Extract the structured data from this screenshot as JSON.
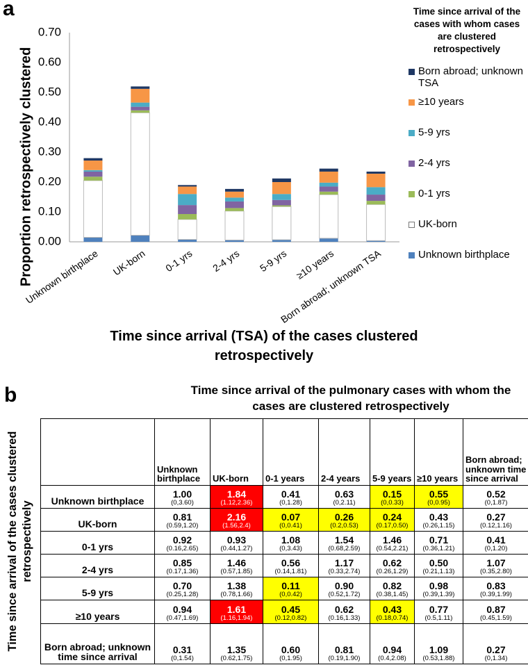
{
  "chart_data": {
    "type": "stacked_bar",
    "panel_label": "a",
    "y_label": "Proportion retrospectively clustered",
    "x_label": "Time since arrival (TSA) of the cases clustered retrospectively",
    "legend_title": "Time since arrival of the cases with whom cases are clustered retrospectively",
    "legend_position": "right",
    "categories": [
      "Unknown birthplace",
      "UK-born",
      "0-1 yrs",
      "2-4 yrs",
      "5-9 yrs",
      "≥10 years",
      "Born abroad; unknown TSA"
    ],
    "series": [
      {
        "name": "Unknown birthplace",
        "color": "#4f81bd",
        "values": [
          0.015,
          0.022,
          0.008,
          0.006,
          0.007,
          0.012,
          0.004
        ]
      },
      {
        "name": "UK-born",
        "color": "#ffffff",
        "values": [
          0.19,
          0.41,
          0.067,
          0.097,
          0.111,
          0.146,
          0.121
        ]
      },
      {
        "name": "0-1 yrs",
        "color": "#9bbb59",
        "values": [
          0.013,
          0.008,
          0.018,
          0.01,
          0.004,
          0.01,
          0.012
        ]
      },
      {
        "name": "2-4 yrs",
        "color": "#8064a2",
        "values": [
          0.017,
          0.012,
          0.03,
          0.022,
          0.018,
          0.017,
          0.021
        ]
      },
      {
        "name": "5-9 yrs",
        "color": "#4bacc6",
        "values": [
          0.005,
          0.014,
          0.037,
          0.013,
          0.02,
          0.013,
          0.025
        ]
      },
      {
        "name": "≥10 years",
        "color": "#f79646",
        "values": [
          0.032,
          0.046,
          0.025,
          0.02,
          0.04,
          0.037,
          0.045
        ]
      },
      {
        "name": "Born abroad; unknown TSA",
        "color": "#1f3864",
        "values": [
          0.008,
          0.008,
          0.005,
          0.009,
          0.012,
          0.01,
          0.007
        ]
      }
    ],
    "ylim": [
      0,
      0.7
    ],
    "yticks": [
      {
        "value": 0,
        "label": "0.00"
      },
      {
        "value": 0.1,
        "label": "0.10"
      },
      {
        "value": 0.2,
        "label": "0.20"
      },
      {
        "value": 0.3,
        "label": "0.30"
      },
      {
        "value": 0.4,
        "label": "0.40"
      },
      {
        "value": 0.5,
        "label": "0.50"
      },
      {
        "value": 0.6,
        "label": "0.60"
      },
      {
        "value": 0.7,
        "label": "0.70"
      }
    ],
    "grid": false
  },
  "panel_b": {
    "panel_label": "b",
    "title": "Time since arrival of the pulmonary cases with whom the cases are clustered retrospectively",
    "row_axis_label": "Time since arrival  of the cases clustered retrospectively",
    "columns": [
      "Unknown birthplace",
      "UK-born",
      "0-1 years",
      "2-4 years",
      "5-9 years",
      "≥10 years",
      "Born abroad; unknown time since arrival"
    ],
    "rows": [
      {
        "label": "Unknown birthplace",
        "cells": [
          {
            "value": "1.00",
            "ci": "(0,3.60)"
          },
          {
            "value": "1.84",
            "ci": "(1.12,2.36)",
            "fill": "#ff0000"
          },
          {
            "value": "0.41",
            "ci": "(0,1.28)"
          },
          {
            "value": "0.63",
            "ci": "(0,2.11)"
          },
          {
            "value": "0.15",
            "ci": "(0,0.33)",
            "fill": "#ffff00"
          },
          {
            "value": "0.55",
            "ci": "(0,0.95)",
            "fill": "#ffff00"
          },
          {
            "value": "0.52",
            "ci": "(0,1.87)"
          }
        ]
      },
      {
        "label": "UK-born",
        "cells": [
          {
            "value": "0.81",
            "ci": "(0.59,1.20)"
          },
          {
            "value": "2.16",
            "ci": "(1.56,2.4)",
            "fill": "#ff0000"
          },
          {
            "value": "0.07",
            "ci": "(0,0.41)",
            "fill": "#ffff00"
          },
          {
            "value": "0.26",
            "ci": "(0.2,0.53)",
            "fill": "#ffff00"
          },
          {
            "value": "0.24",
            "ci": "(0.17,0.50)",
            "fill": "#ffff00"
          },
          {
            "value": "0.43",
            "ci": "(0.26,1.15)"
          },
          {
            "value": "0.27",
            "ci": "(0.12,1.16)"
          }
        ]
      },
      {
        "label": "0-1 yrs",
        "cells": [
          {
            "value": "0.92",
            "ci": "(0.16,2.65)"
          },
          {
            "value": "0.93",
            "ci": "(0.44,1.27)"
          },
          {
            "value": "1.08",
            "ci": "(0,3.43)"
          },
          {
            "value": "1.54",
            "ci": "(0.68,2.59)"
          },
          {
            "value": "1.46",
            "ci": "(0.54,2.21)"
          },
          {
            "value": "0.71",
            "ci": "(0.36,1.21)"
          },
          {
            "value": "0.41",
            "ci": "(0,1.20)"
          }
        ]
      },
      {
        "label": "2-4 yrs",
        "cells": [
          {
            "value": "0.85",
            "ci": "(0.17,1.36)"
          },
          {
            "value": "1.46",
            "ci": "(0.57,1.85)"
          },
          {
            "value": "0.56",
            "ci": "(0.14,1.81)"
          },
          {
            "value": "1.17",
            "ci": "(0.33,2.74)"
          },
          {
            "value": "0.62",
            "ci": "(0.26,1.29)"
          },
          {
            "value": "0.50",
            "ci": "(0.21,1.13)"
          },
          {
            "value": "1.07",
            "ci": "(0.35,2.80)"
          }
        ]
      },
      {
        "label": "5-9 yrs",
        "cells": [
          {
            "value": "0.70",
            "ci": "(0.25,1.28)"
          },
          {
            "value": "1.38",
            "ci": "(0.78,1.66)"
          },
          {
            "value": "0.11",
            "ci": "(0,0.42)",
            "fill": "#ffff00"
          },
          {
            "value": "0.90",
            "ci": "(0.52,1.72)"
          },
          {
            "value": "0.82",
            "ci": "(0.38,1.45)"
          },
          {
            "value": "0.98",
            "ci": "(0.39,1.39)"
          },
          {
            "value": "0.83",
            "ci": "(0.39,1.99)"
          }
        ]
      },
      {
        "label": "≥10 years",
        "cells": [
          {
            "value": "0.94",
            "ci": "(0.47,1.69)"
          },
          {
            "value": "1.61",
            "ci": "(1.16,1.94)",
            "fill": "#ff0000"
          },
          {
            "value": "0.45",
            "ci": "(0.12,0.82)",
            "fill": "#ffff00"
          },
          {
            "value": "0.62",
            "ci": "(0.16,1.33)"
          },
          {
            "value": "0.43",
            "ci": "(0.18,0.74)",
            "fill": "#ffff00"
          },
          {
            "value": "0.77",
            "ci": "(0.5,1.11)"
          },
          {
            "value": "0.87",
            "ci": "(0.45,1.59)"
          }
        ]
      },
      {
        "label": "Born abroad; unknown time since arrival",
        "cells": [
          {
            "value": "0.31",
            "ci": "(0,1.54)"
          },
          {
            "value": "1.35",
            "ci": "(0.62,1.75)"
          },
          {
            "value": "0.60",
            "ci": "(0,1.95)"
          },
          {
            "value": "0.81",
            "ci": "(0.19,1.90)"
          },
          {
            "value": "0.94",
            "ci": "(0.4,2.08)"
          },
          {
            "value": "1.09",
            "ci": "(0.53,1.88)"
          },
          {
            "value": "0.27",
            "ci": "(0,1.34)"
          }
        ]
      }
    ]
  }
}
